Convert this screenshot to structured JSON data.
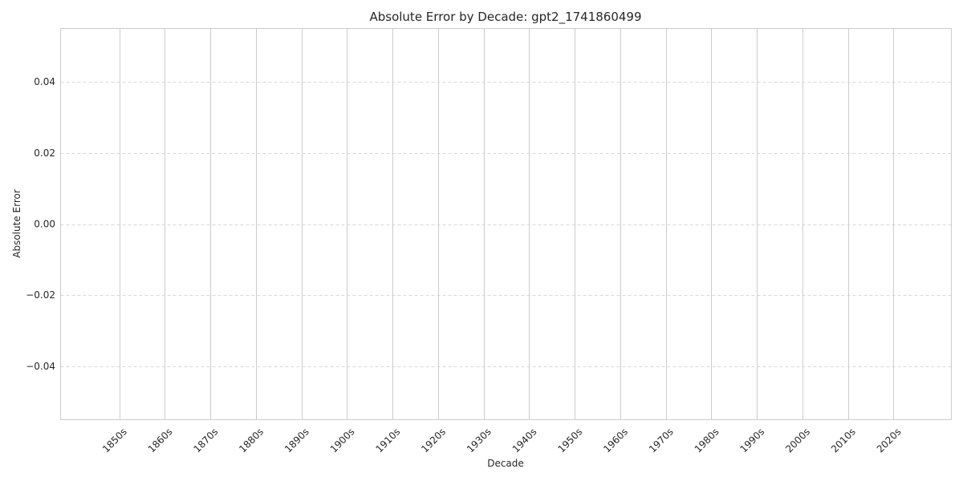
{
  "chart_data": {
    "type": "bar",
    "title": "Absolute Error by Decade: gpt2_1741860499",
    "xlabel": "Decade",
    "ylabel": "Absolute Error",
    "categories": [
      "1850s",
      "1860s",
      "1870s",
      "1880s",
      "1890s",
      "1900s",
      "1910s",
      "1920s",
      "1930s",
      "1940s",
      "1950s",
      "1960s",
      "1970s",
      "1980s",
      "1990s",
      "2000s",
      "2010s",
      "2020s"
    ],
    "series": [
      {
        "values": [
          0,
          0,
          0,
          0,
          0,
          0,
          0,
          0,
          0,
          0,
          0,
          0,
          0,
          0,
          0,
          0,
          0,
          0
        ]
      }
    ],
    "ylim": [
      -0.055,
      0.055
    ],
    "yticks": [
      -0.04,
      -0.02,
      0.0,
      0.02,
      0.04
    ],
    "ytick_labels": [
      "−0.04",
      "−0.02",
      "0.00",
      "0.02",
      "0.04"
    ],
    "x_tick_rotation": "45 degrees",
    "grid": {
      "x": "solid",
      "y": "dashed"
    },
    "colors": {
      "grid": "#cccccc",
      "frame": "#cccccc",
      "text": "#262626"
    }
  }
}
